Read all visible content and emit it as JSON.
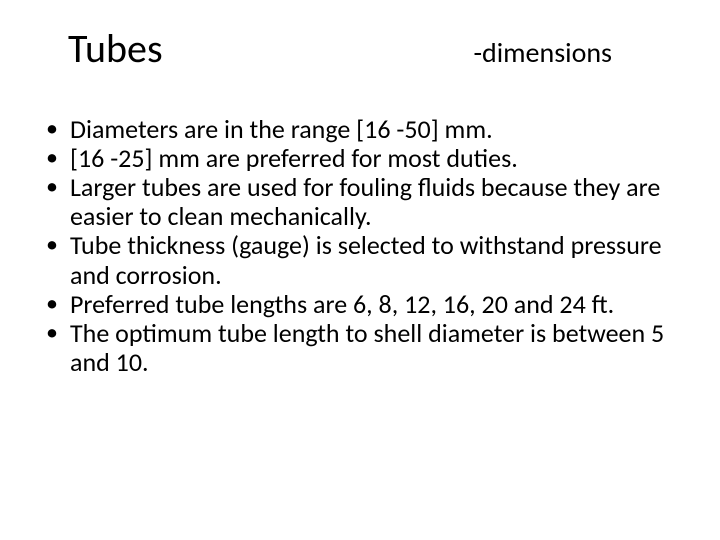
{
  "title": {
    "main": "Tubes",
    "sub": "-dimensions"
  },
  "bullets": [
    "Diameters are in the range [16 -50] mm.",
    "[16 -25] mm are preferred for most duties.",
    "Larger tubes are used for fouling fluids because they are easier to clean mechanically.",
    "Tube thickness (gauge) is selected to withstand pressure and corrosion.",
    "Preferred tube lengths are 6, 8, 12, 16, 20 and 24 ft.",
    "The optimum tube length to shell diameter is between 5 and 10."
  ],
  "colors": {
    "background": "#ffffff",
    "text": "#000000"
  },
  "fonts": {
    "title_size_pt": 40,
    "subtitle_size_pt": 28,
    "body_size_pt": 26,
    "family": "Calibri"
  }
}
